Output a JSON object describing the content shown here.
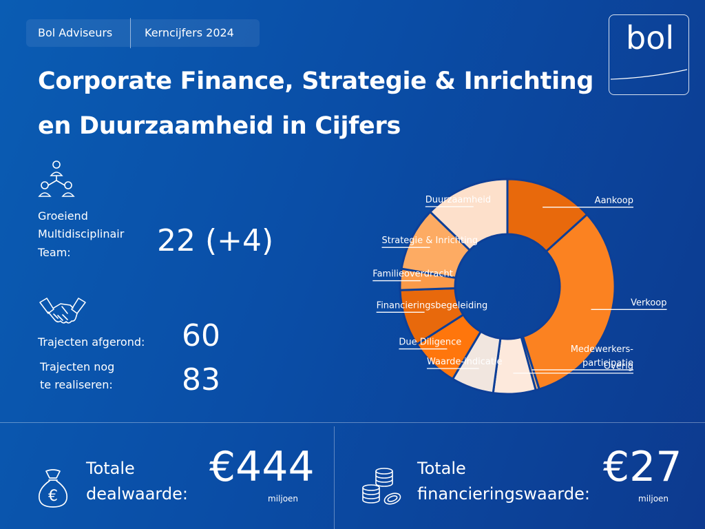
{
  "header": {
    "company": "Bol Adviseurs",
    "report": "Kerncijfers 2024",
    "title_line1": "Corporate Finance, Strategie & Inrichting",
    "title_line2": "en Duurzaamheid in Cijfers",
    "logo_text": "bol"
  },
  "stats": {
    "team_line1": "Groeiend",
    "team_line2": "Multidisciplinair",
    "team_line3": "Team:",
    "team_value": "22 (+4)",
    "completed_label": "Trajecten afgerond:",
    "completed_value": "60",
    "pending_line1": "Trajecten nog",
    "pending_line2": "te realiseren:",
    "pending_value": "83"
  },
  "totals": {
    "deal_line1": "Totale",
    "deal_line2": "dealwaarde:",
    "deal_value": "€444",
    "deal_unit": "miljoen",
    "fin_line1": "Totale",
    "fin_line2": "financieringswaarde:",
    "fin_value": "€27",
    "fin_unit": "miljoen"
  },
  "icons": {
    "team": "team-network-icon",
    "deal": "handshake-icon",
    "moneybag": "euro-money-bag-icon",
    "coins": "coin-stack-icon"
  },
  "chart_data": {
    "type": "pie",
    "style": "donut",
    "categories": [
      "Aankoop",
      "Verkoop",
      "Medewerkers-participatie",
      "Overig",
      "Waarde-indicatie",
      "Due Diligence",
      "Financieringsbegeleiding",
      "Familieoverdracht",
      "Strategie & Inrichting",
      "Duurzaamheid"
    ],
    "label_lines": [
      [
        "Aankoop"
      ],
      [
        "Verkoop"
      ],
      [
        "Medewerkers-",
        "participatie"
      ],
      [
        "Overig"
      ],
      [
        "Waarde-indicatie"
      ],
      [
        "Due Diligence"
      ],
      [
        "Financieringsbegeleiding"
      ],
      [
        "Familieoverdracht"
      ],
      [
        "Strategie & Inrichting"
      ],
      [
        "Duurzaamheid"
      ]
    ],
    "values": [
      12.5,
      30,
      0.5,
      6,
      6,
      7,
      8,
      3,
      9,
      12
    ],
    "colors": [
      "#e8690c",
      "#fb8221",
      "#f6b779",
      "#fde9dc",
      "#f1e6df",
      "#ff760c",
      "#e8690c",
      "#fb9a49",
      "#fdab63",
      "#fde0cb"
    ]
  }
}
